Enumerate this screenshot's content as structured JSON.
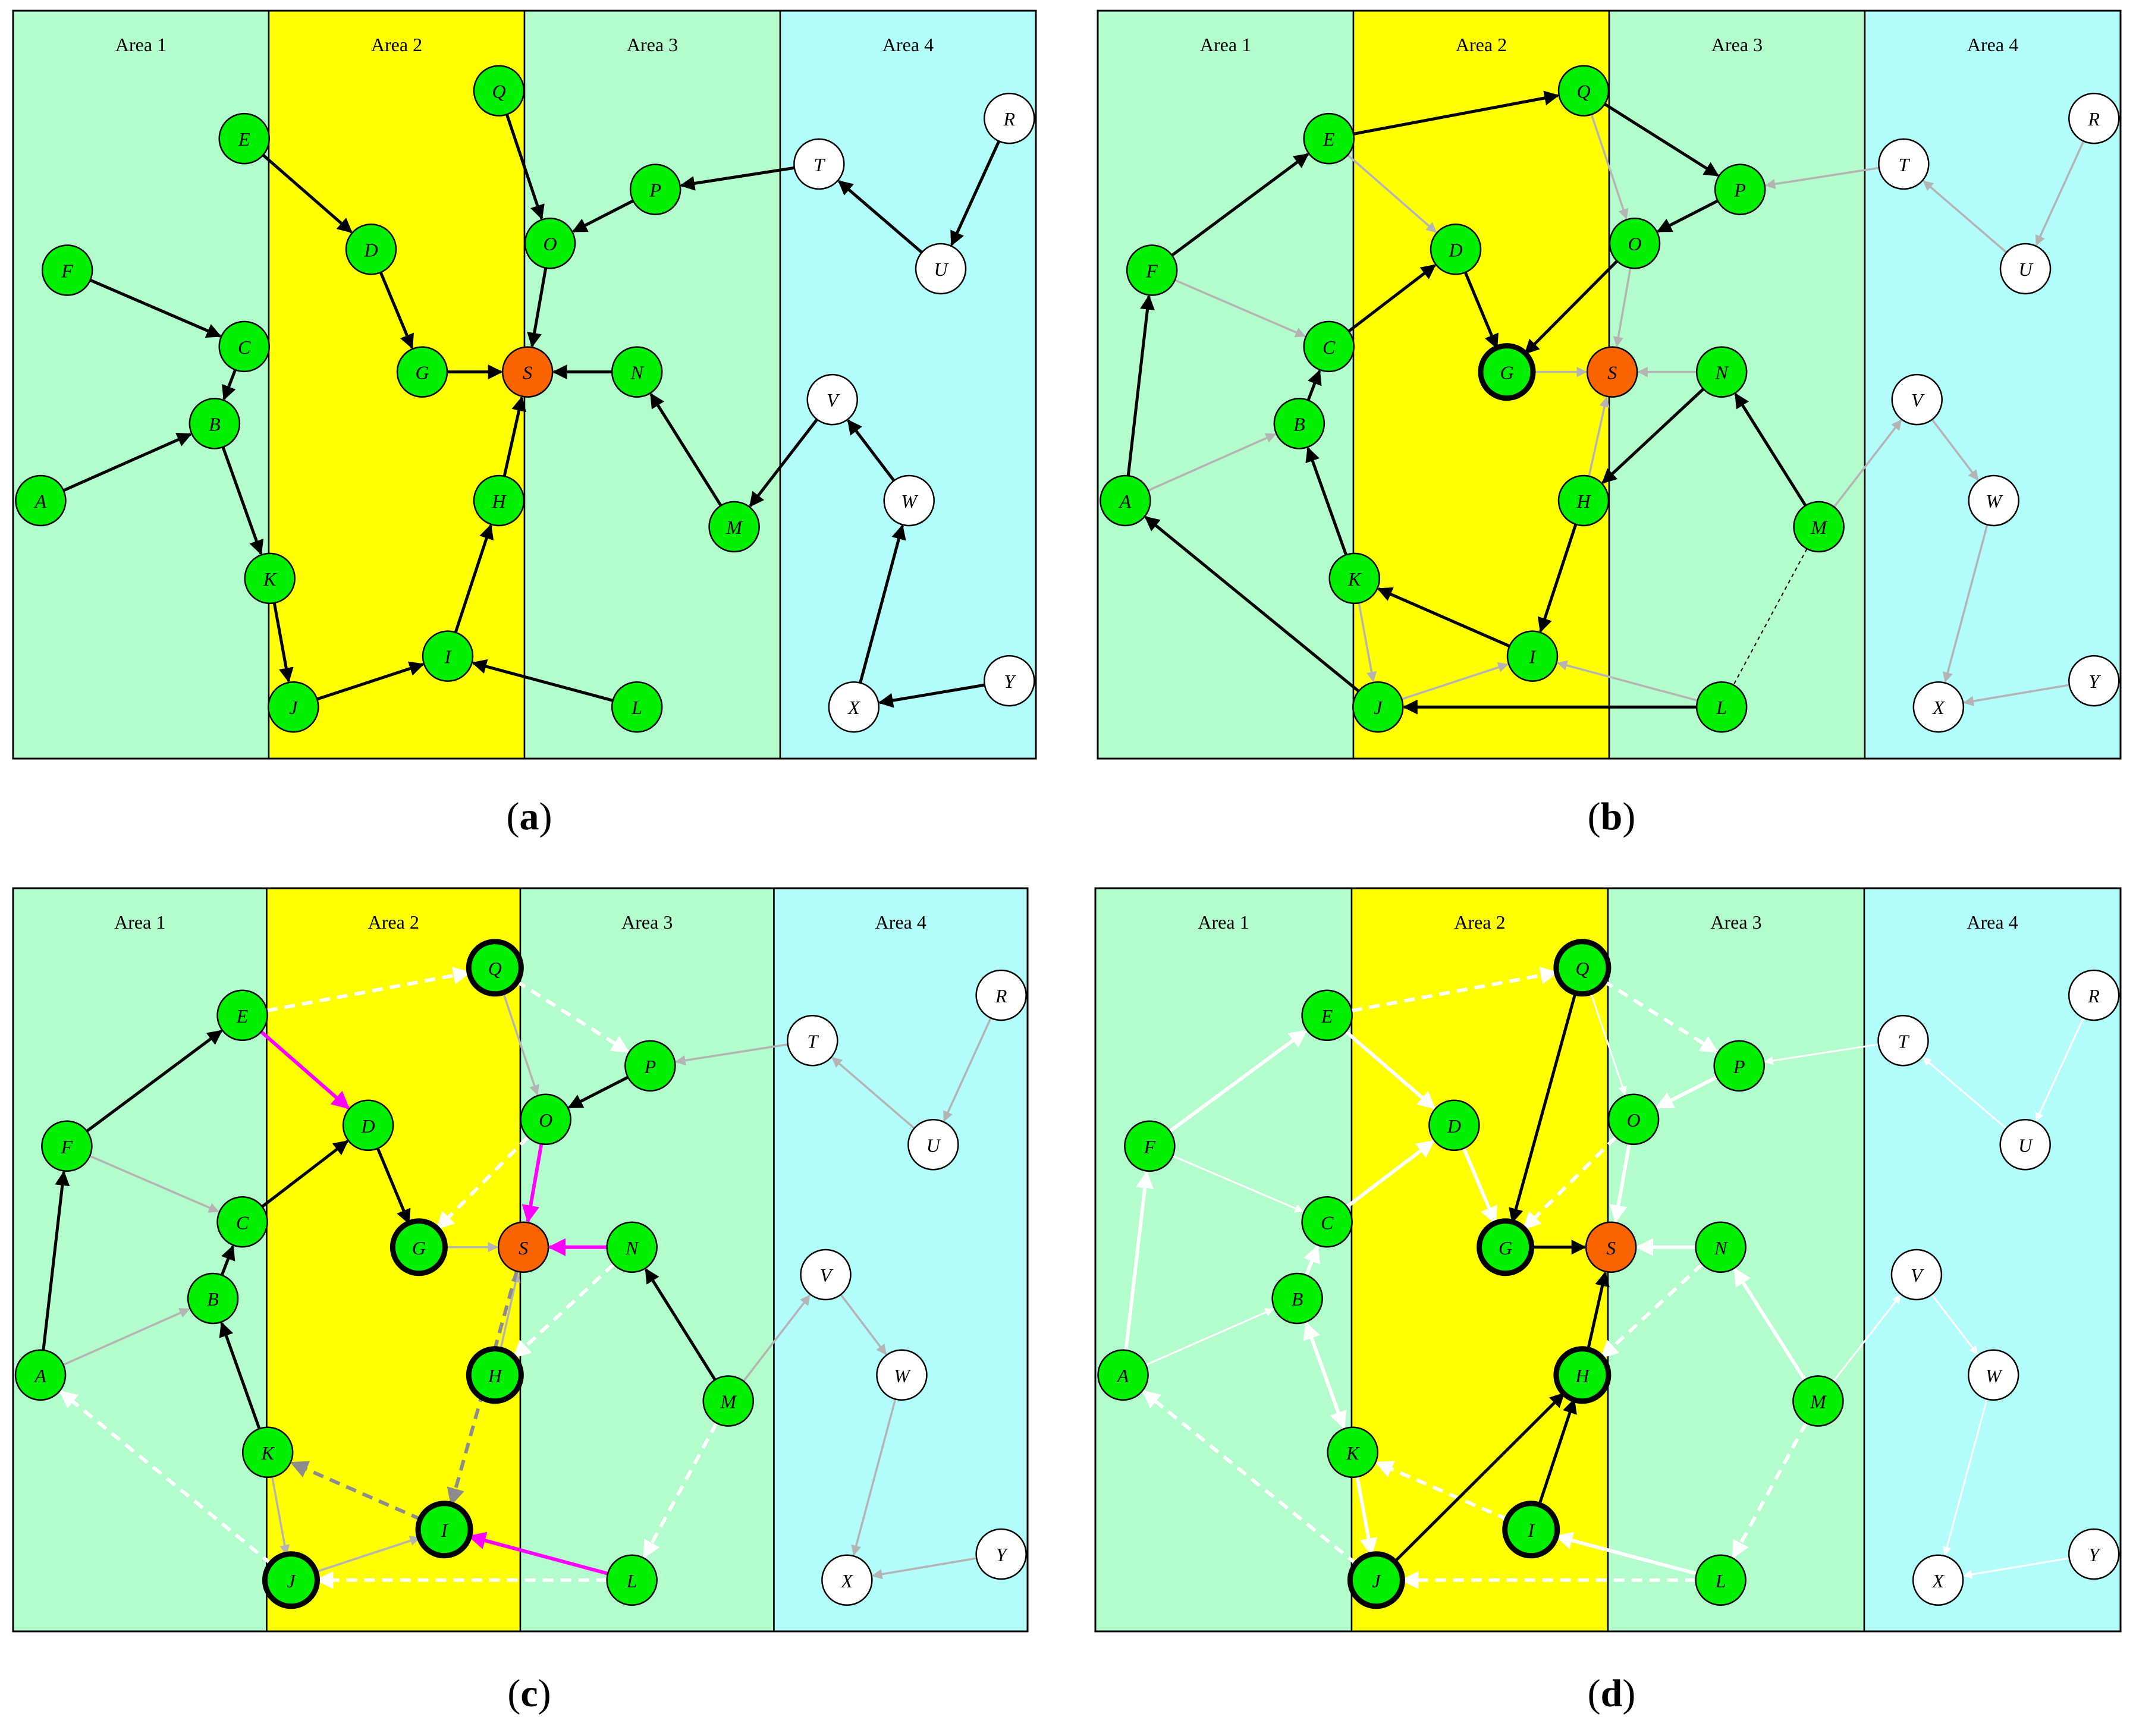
{
  "colors": {
    "area_green": "#b3fccb",
    "area_yellow": "#ffff00",
    "area_cyan": "#b3fcfc",
    "node_green": "#00f000",
    "node_white": "#ffffff",
    "node_orange": "#fa6400",
    "edge_black": "#000000",
    "edge_gray": "#b4b4b4",
    "edge_dark_gray": "#8c8c8c",
    "edge_white": "#ffffff",
    "edge_magenta": "#ff00ff"
  },
  "areas": [
    "Area 1",
    "Area 2",
    "Area 3",
    "Area 4"
  ],
  "node_labels": {
    "A": "A",
    "B": "B",
    "C": "C",
    "D": "D",
    "E": "E",
    "F": "F",
    "G": "G",
    "H": "H",
    "I": "I",
    "J": "J",
    "K": "K",
    "L": "L",
    "M": "M",
    "N": "N",
    "O": "O",
    "P": "P",
    "Q": "Q",
    "R": "R",
    "S": "S",
    "T": "T",
    "U": "U",
    "V": "V",
    "W": "W",
    "X": "X",
    "Y": "Y"
  },
  "panels": [
    {
      "id": "a",
      "caption_open": "(",
      "caption_letter": "a",
      "caption_close": ")",
      "node_colors": {
        "A": "green",
        "B": "green",
        "C": "green",
        "D": "green",
        "E": "green",
        "F": "green",
        "G": "green",
        "H": "green",
        "I": "green",
        "J": "green",
        "K": "green",
        "L": "green",
        "M": "green",
        "N": "green",
        "O": "green",
        "P": "green",
        "Q": "green",
        "S": "orange",
        "R": "white",
        "T": "white",
        "U": "white",
        "V": "white",
        "W": "white",
        "X": "white",
        "Y": "white"
      },
      "bold_nodes": [],
      "edges": [
        {
          "from": "F",
          "to": "C",
          "style": "black"
        },
        {
          "from": "C",
          "to": "B",
          "style": "black"
        },
        {
          "from": "A",
          "to": "B",
          "style": "black"
        },
        {
          "from": "B",
          "to": "K",
          "style": "black"
        },
        {
          "from": "K",
          "to": "J",
          "style": "black"
        },
        {
          "from": "J",
          "to": "I",
          "style": "black"
        },
        {
          "from": "L",
          "to": "I",
          "style": "black"
        },
        {
          "from": "I",
          "to": "H",
          "style": "black"
        },
        {
          "from": "H",
          "to": "S",
          "style": "black"
        },
        {
          "from": "E",
          "to": "D",
          "style": "black"
        },
        {
          "from": "D",
          "to": "G",
          "style": "black"
        },
        {
          "from": "G",
          "to": "S",
          "style": "black"
        },
        {
          "from": "Q",
          "to": "O",
          "style": "black"
        },
        {
          "from": "O",
          "to": "S",
          "style": "black"
        },
        {
          "from": "P",
          "to": "O",
          "style": "black"
        },
        {
          "from": "T",
          "to": "P",
          "style": "black"
        },
        {
          "from": "U",
          "to": "T",
          "style": "black"
        },
        {
          "from": "R",
          "to": "U",
          "style": "black"
        },
        {
          "from": "N",
          "to": "S",
          "style": "black"
        },
        {
          "from": "M",
          "to": "N",
          "style": "black"
        },
        {
          "from": "V",
          "to": "M",
          "style": "black"
        },
        {
          "from": "W",
          "to": "V",
          "style": "black"
        },
        {
          "from": "X",
          "to": "W",
          "style": "black"
        },
        {
          "from": "Y",
          "to": "X",
          "style": "black"
        }
      ]
    },
    {
      "id": "b",
      "caption_open": "(",
      "caption_letter": "b",
      "caption_close": ")",
      "node_colors": {
        "A": "green",
        "B": "green",
        "C": "green",
        "D": "green",
        "E": "green",
        "F": "green",
        "G": "green",
        "H": "green",
        "I": "green",
        "J": "green",
        "K": "green",
        "L": "green",
        "M": "green",
        "N": "green",
        "O": "green",
        "P": "green",
        "Q": "green",
        "S": "orange",
        "R": "white",
        "T": "white",
        "U": "white",
        "V": "white",
        "W": "white",
        "X": "white",
        "Y": "white"
      },
      "bold_nodes": [
        "G"
      ],
      "edges": [
        {
          "from": "F",
          "to": "C",
          "style": "gray"
        },
        {
          "from": "A",
          "to": "B",
          "style": "gray"
        },
        {
          "from": "K",
          "to": "J",
          "style": "gray"
        },
        {
          "from": "E",
          "to": "D",
          "style": "gray"
        },
        {
          "from": "G",
          "to": "S",
          "style": "gray"
        },
        {
          "from": "N",
          "to": "S",
          "style": "gray"
        },
        {
          "from": "O",
          "to": "S",
          "style": "gray"
        },
        {
          "from": "H",
          "to": "S",
          "style": "gray"
        },
        {
          "from": "Q",
          "to": "O",
          "style": "gray"
        },
        {
          "from": "T",
          "to": "P",
          "style": "gray"
        },
        {
          "from": "U",
          "to": "T",
          "style": "gray"
        },
        {
          "from": "R",
          "to": "U",
          "style": "gray"
        },
        {
          "from": "M",
          "to": "V",
          "style": "gray"
        },
        {
          "from": "V",
          "to": "W",
          "style": "gray"
        },
        {
          "from": "W",
          "to": "X",
          "style": "gray"
        },
        {
          "from": "Y",
          "to": "X",
          "style": "gray"
        },
        {
          "from": "J",
          "to": "I",
          "style": "gray"
        },
        {
          "from": "L",
          "to": "I",
          "style": "gray"
        },
        {
          "from": "M",
          "to": "L",
          "style": "thin-dash"
        },
        {
          "from": "A",
          "to": "F",
          "style": "black"
        },
        {
          "from": "F",
          "to": "E",
          "style": "black"
        },
        {
          "from": "E",
          "to": "Q",
          "style": "black"
        },
        {
          "from": "Q",
          "to": "P",
          "style": "black"
        },
        {
          "from": "P",
          "to": "O",
          "style": "black"
        },
        {
          "from": "O",
          "to": "G",
          "style": "black"
        },
        {
          "from": "C",
          "to": "D",
          "style": "black"
        },
        {
          "from": "D",
          "to": "G",
          "style": "black"
        },
        {
          "from": "B",
          "to": "C",
          "style": "black"
        },
        {
          "from": "K",
          "to": "B",
          "style": "black"
        },
        {
          "from": "I",
          "to": "K",
          "style": "black"
        },
        {
          "from": "H",
          "to": "I",
          "style": "black"
        },
        {
          "from": "N",
          "to": "H",
          "style": "black"
        },
        {
          "from": "M",
          "to": "N",
          "style": "black"
        },
        {
          "from": "L",
          "to": "J",
          "style": "black"
        },
        {
          "from": "J",
          "to": "A",
          "style": "black"
        }
      ]
    },
    {
      "id": "c",
      "caption_open": "(",
      "caption_letter": "c",
      "caption_close": ")",
      "node_colors": {
        "A": "green",
        "B": "green",
        "C": "green",
        "D": "green",
        "E": "green",
        "F": "green",
        "G": "green",
        "H": "green",
        "I": "green",
        "J": "green",
        "K": "green",
        "L": "green",
        "M": "green",
        "N": "green",
        "O": "green",
        "P": "green",
        "Q": "green",
        "S": "orange",
        "R": "white",
        "T": "white",
        "U": "white",
        "V": "white",
        "W": "white",
        "X": "white",
        "Y": "white"
      },
      "bold_nodes": [
        "Q",
        "G",
        "H",
        "I",
        "J"
      ],
      "edges": [
        {
          "from": "F",
          "to": "C",
          "style": "gray"
        },
        {
          "from": "A",
          "to": "B",
          "style": "gray"
        },
        {
          "from": "K",
          "to": "J",
          "style": "gray"
        },
        {
          "from": "J",
          "to": "I",
          "style": "gray"
        },
        {
          "from": "G",
          "to": "S",
          "style": "gray"
        },
        {
          "from": "Q",
          "to": "O",
          "style": "gray"
        },
        {
          "from": "T",
          "to": "P",
          "style": "gray"
        },
        {
          "from": "U",
          "to": "T",
          "style": "gray"
        },
        {
          "from": "R",
          "to": "U",
          "style": "gray"
        },
        {
          "from": "M",
          "to": "V",
          "style": "gray"
        },
        {
          "from": "V",
          "to": "W",
          "style": "gray"
        },
        {
          "from": "W",
          "to": "X",
          "style": "gray"
        },
        {
          "from": "Y",
          "to": "X",
          "style": "gray"
        },
        {
          "from": "H",
          "to": "S",
          "style": "gray"
        },
        {
          "from": "E",
          "to": "Q",
          "style": "white-dash"
        },
        {
          "from": "Q",
          "to": "P",
          "style": "white-dash"
        },
        {
          "from": "O",
          "to": "G",
          "style": "white-dash"
        },
        {
          "from": "N",
          "to": "H",
          "style": "white-dash"
        },
        {
          "from": "M",
          "to": "L",
          "style": "white-dash"
        },
        {
          "from": "L",
          "to": "J",
          "style": "white-dash"
        },
        {
          "from": "J",
          "to": "A",
          "style": "white-dash"
        },
        {
          "from": "I",
          "to": "K",
          "style": "gray-dash"
        },
        {
          "from": "S",
          "to": "I",
          "style": "gray-dash"
        },
        {
          "from": "A",
          "to": "F",
          "style": "black"
        },
        {
          "from": "F",
          "to": "E",
          "style": "black"
        },
        {
          "from": "C",
          "to": "D",
          "style": "black"
        },
        {
          "from": "D",
          "to": "G",
          "style": "black"
        },
        {
          "from": "B",
          "to": "C",
          "style": "black"
        },
        {
          "from": "K",
          "to": "B",
          "style": "black"
        },
        {
          "from": "P",
          "to": "O",
          "style": "black"
        },
        {
          "from": "M",
          "to": "N",
          "style": "black"
        },
        {
          "from": "E",
          "to": "D",
          "style": "magenta"
        },
        {
          "from": "O",
          "to": "S",
          "style": "magenta"
        },
        {
          "from": "N",
          "to": "S",
          "style": "magenta"
        },
        {
          "from": "L",
          "to": "I",
          "style": "magenta"
        }
      ]
    },
    {
      "id": "d",
      "caption_open": "(",
      "caption_letter": "d",
      "caption_close": ")",
      "node_colors": {
        "A": "green",
        "B": "green",
        "C": "green",
        "D": "green",
        "E": "green",
        "F": "green",
        "G": "green",
        "H": "green",
        "I": "green",
        "J": "green",
        "K": "green",
        "L": "green",
        "M": "green",
        "N": "green",
        "O": "green",
        "P": "green",
        "Q": "green",
        "S": "orange",
        "R": "white",
        "T": "white",
        "U": "white",
        "V": "white",
        "W": "white",
        "X": "white",
        "Y": "white"
      },
      "bold_nodes": [
        "Q",
        "G",
        "H",
        "I",
        "J"
      ],
      "edges": [
        {
          "from": "F",
          "to": "C",
          "style": "white-thin"
        },
        {
          "from": "A",
          "to": "B",
          "style": "white-thin"
        },
        {
          "from": "Q",
          "to": "O",
          "style": "white-thin"
        },
        {
          "from": "T",
          "to": "P",
          "style": "white-thin"
        },
        {
          "from": "R",
          "to": "U",
          "style": "white-thin"
        },
        {
          "from": "U",
          "to": "T",
          "style": "white-thin"
        },
        {
          "from": "M",
          "to": "V",
          "style": "white-thin"
        },
        {
          "from": "V",
          "to": "W",
          "style": "white-thin"
        },
        {
          "from": "W",
          "to": "X",
          "style": "white-thin"
        },
        {
          "from": "Y",
          "to": "X",
          "style": "white-thin"
        },
        {
          "from": "E",
          "to": "Q",
          "style": "white-dash"
        },
        {
          "from": "Q",
          "to": "P",
          "style": "white-dash"
        },
        {
          "from": "O",
          "to": "G",
          "style": "white-dash"
        },
        {
          "from": "N",
          "to": "H",
          "style": "white-dash"
        },
        {
          "from": "M",
          "to": "L",
          "style": "white-dash"
        },
        {
          "from": "L",
          "to": "J",
          "style": "white-dash"
        },
        {
          "from": "J",
          "to": "A",
          "style": "white-dash"
        },
        {
          "from": "I",
          "to": "K",
          "style": "white-dash"
        },
        {
          "from": "A",
          "to": "F",
          "style": "white"
        },
        {
          "from": "F",
          "to": "E",
          "style": "white"
        },
        {
          "from": "E",
          "to": "D",
          "style": "white"
        },
        {
          "from": "D",
          "to": "G",
          "style": "white"
        },
        {
          "from": "C",
          "to": "D",
          "style": "white"
        },
        {
          "from": "B",
          "to": "C",
          "style": "white"
        },
        {
          "from": "K",
          "to": "B",
          "style": "white"
        },
        {
          "from": "B",
          "to": "K",
          "style": "white"
        },
        {
          "from": "K",
          "to": "J",
          "style": "white"
        },
        {
          "from": "P",
          "to": "O",
          "style": "white"
        },
        {
          "from": "O",
          "to": "S",
          "style": "white"
        },
        {
          "from": "M",
          "to": "N",
          "style": "white"
        },
        {
          "from": "N",
          "to": "S",
          "style": "white"
        },
        {
          "from": "L",
          "to": "I",
          "style": "white"
        },
        {
          "from": "Q",
          "to": "G",
          "style": "black"
        },
        {
          "from": "G",
          "to": "S",
          "style": "black"
        },
        {
          "from": "H",
          "to": "S",
          "style": "black"
        },
        {
          "from": "I",
          "to": "H",
          "style": "black"
        },
        {
          "from": "J",
          "to": "H",
          "style": "black"
        }
      ]
    }
  ]
}
